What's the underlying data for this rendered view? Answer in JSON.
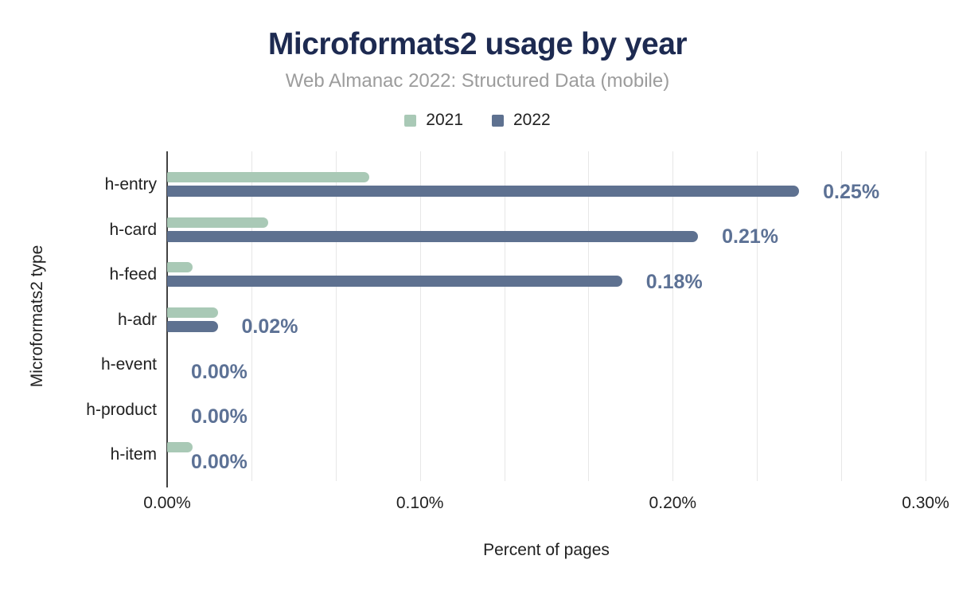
{
  "chart_data": {
    "type": "bar",
    "orientation": "horizontal",
    "title": "Microformats2 usage by year",
    "subtitle": "Web Almanac 2022: Structured Data (mobile)",
    "xlabel": "Percent of pages",
    "ylabel": "Microformats2 type",
    "categories": [
      "h-entry",
      "h-card",
      "h-feed",
      "h-adr",
      "h-event",
      "h-product",
      "h-item"
    ],
    "series": [
      {
        "name": "2021",
        "color": "#a9c9b6",
        "values": [
          0.08,
          0.04,
          0.01,
          0.02,
          0.0,
          0.0,
          0.01
        ]
      },
      {
        "name": "2022",
        "color": "#5e7190",
        "values": [
          0.25,
          0.21,
          0.18,
          0.02,
          0.0,
          0.0,
          0.0
        ]
      }
    ],
    "value_labels": [
      "0.25%",
      "0.21%",
      "0.18%",
      "0.02%",
      "0.00%",
      "0.00%",
      "0.00%"
    ],
    "x_ticks": [
      "0.00%",
      "0.10%",
      "0.20%",
      "0.30%"
    ],
    "xlim": [
      0,
      0.3
    ],
    "grid": "vertical, 9 divisions",
    "legend_position": "top-center",
    "value_label_color": "#5c7195",
    "title_color": "#1d2a51",
    "subtitle_color": "#9c9c9c",
    "axis_text_color": "#212121",
    "gridline_color": "#e7e7e7",
    "background_color": "#ffffff"
  }
}
